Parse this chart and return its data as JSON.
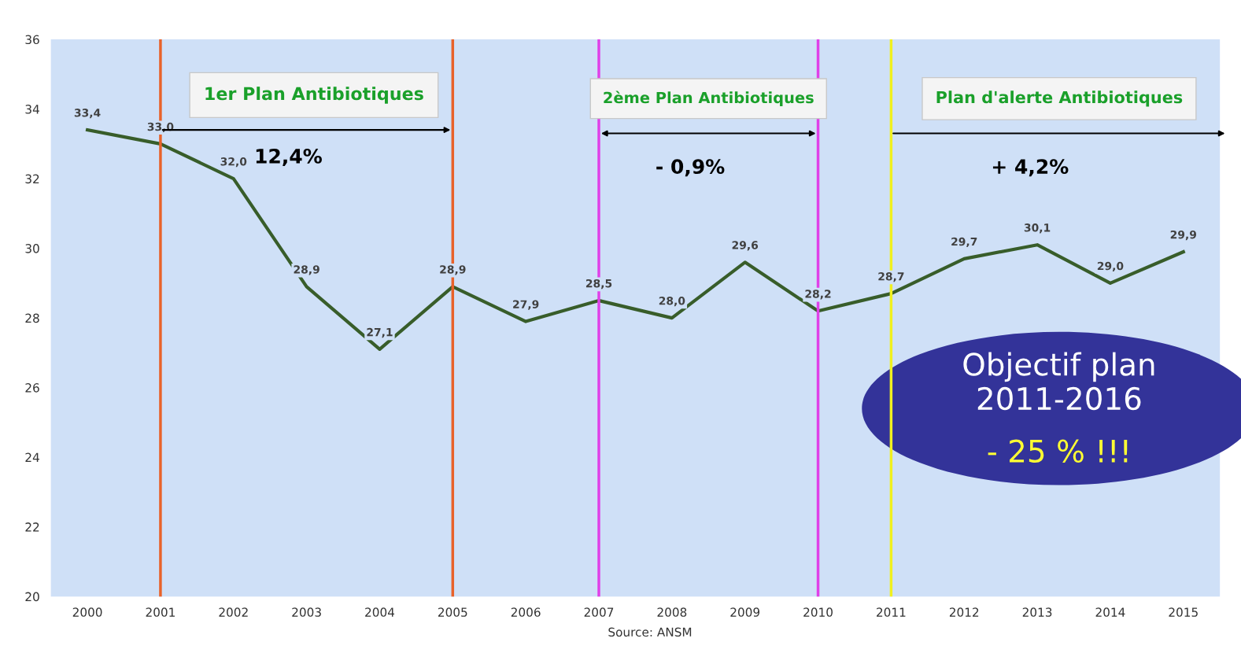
{
  "chart_data": {
    "type": "line",
    "categories": [
      "2000",
      "2001",
      "2002",
      "2003",
      "2004",
      "2005",
      "2006",
      "2007",
      "2008",
      "2009",
      "2010",
      "2011",
      "2012",
      "2013",
      "2014",
      "2015"
    ],
    "series": [
      {
        "color": "#385d2a",
        "values": [
          33.4,
          33.0,
          32.0,
          28.9,
          27.1,
          28.9,
          27.9,
          28.5,
          28.0,
          29.6,
          28.2,
          28.7,
          29.7,
          30.1,
          29.0,
          29.9
        ],
        "value_labels": [
          "33,4",
          "33,0",
          "32,0",
          "28,9",
          "27,1",
          "28,9",
          "27,9",
          "28,5",
          "28,0",
          "29,6",
          "28,2",
          "28,7",
          "29,7",
          "30,1",
          "29,0",
          "29,9"
        ]
      }
    ],
    "ylim": [
      20,
      36
    ],
    "yticks": [
      20,
      22,
      24,
      26,
      28,
      30,
      32,
      34,
      36
    ],
    "ref_lines": [
      {
        "axis": "x",
        "value": "2001",
        "color": "#e8622a"
      },
      {
        "axis": "x",
        "value": "2005",
        "color": "#e8622a"
      },
      {
        "axis": "x",
        "value": "2007",
        "color": "#e040e8"
      },
      {
        "axis": "x",
        "value": "2010",
        "color": "#e040e8"
      },
      {
        "axis": "x",
        "value": "2011",
        "color": "#f0f020"
      }
    ],
    "annotations": [
      "1er Plan Antibiotiques",
      "2ème Plan Antibiotiques",
      "Plan d'alerte Antibiotiques",
      "12,4%",
      "- 0,9%",
      "+ 4,2%",
      "Objectif plan\n2011-2016",
      "- 25 % !!!",
      "Source: ANSM"
    ],
    "grid": false,
    "legend": false,
    "marker": "none",
    "line_style": "solid"
  }
}
